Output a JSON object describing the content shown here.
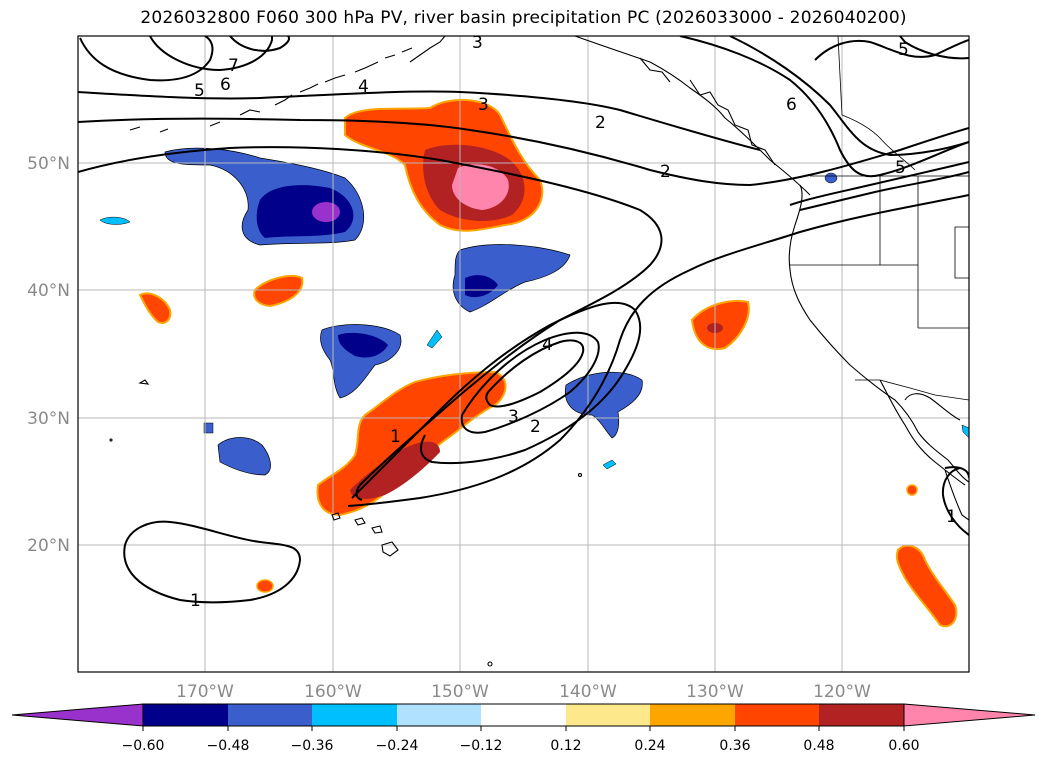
{
  "title": "2026032800 F060 300 hPa PV, river basin precipitation PC (2026033000 - 2026040200)",
  "map": {
    "lat_labels": [
      "50°N",
      "40°N",
      "30°N",
      "20°N"
    ],
    "lon_labels": [
      "170°W",
      "160°W",
      "150°W",
      "140°W",
      "130°W",
      "120°W"
    ],
    "contour_labels": [
      "1",
      "1",
      "1",
      "2",
      "2",
      "2",
      "3",
      "3",
      "3",
      "4",
      "4",
      "5",
      "5",
      "5",
      "6",
      "6",
      "7"
    ]
  },
  "colorbar": {
    "ticks": [
      "−0.60",
      "−0.48",
      "−0.36",
      "−0.24",
      "−0.12",
      "0.12",
      "0.24",
      "0.36",
      "0.48",
      "0.60"
    ],
    "colors": [
      "#9932cc",
      "#00008b",
      "#3a5fcd",
      "#00bfff",
      "#b0e2ff",
      "#ffffff",
      "#fde98c",
      "#ffa500",
      "#ff4500",
      "#b22222",
      "#ff85ad"
    ]
  }
}
